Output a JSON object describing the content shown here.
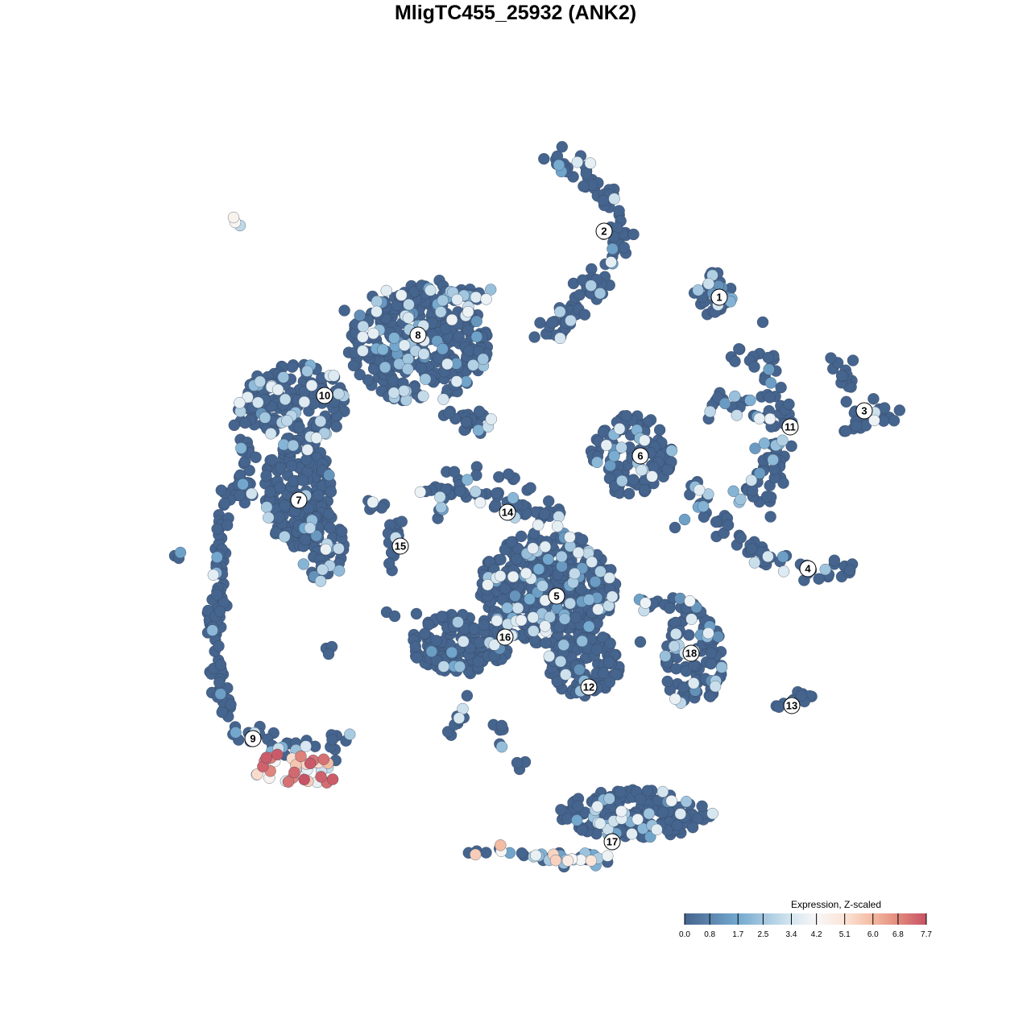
{
  "chart_data": {
    "type": "scatter",
    "title": "MligTC455_25932 (ANK2)",
    "xlabel": "",
    "ylabel": "",
    "grid": false,
    "axes_visible": false,
    "cluster_labels": [
      "1",
      "2",
      "3",
      "4",
      "5",
      "6",
      "7",
      "8",
      "9",
      "10",
      "11",
      "12",
      "13",
      "14",
      "15",
      "16",
      "17",
      "18"
    ],
    "high_expression_clusters": [
      "9",
      "17"
    ],
    "legend": {
      "title": "Expression, Z-scaled",
      "placement": "bottom-right",
      "range": [
        0.0,
        7.7
      ],
      "ticks": [
        "0.0",
        "0.8",
        "1.7",
        "2.5",
        "3.4",
        "4.2",
        "5.1",
        "6.0",
        "6.8",
        "7.7"
      ],
      "tick_values": [
        0.0,
        0.8,
        1.7,
        2.5,
        3.4,
        4.2,
        5.1,
        6.0,
        6.8,
        7.7
      ],
      "color_stops": [
        {
          "value": 0.0,
          "color": "#45648e"
        },
        {
          "value": 1.7,
          "color": "#74a9cf"
        },
        {
          "value": 3.4,
          "color": "#d5e6f0"
        },
        {
          "value": 4.2,
          "color": "#f7f7f7"
        },
        {
          "value": 5.1,
          "color": "#fbe4d7"
        },
        {
          "value": 6.0,
          "color": "#f4b9a0"
        },
        {
          "value": 6.8,
          "color": "#e28a7e"
        },
        {
          "value": 7.7,
          "color": "#c65264"
        }
      ]
    }
  }
}
